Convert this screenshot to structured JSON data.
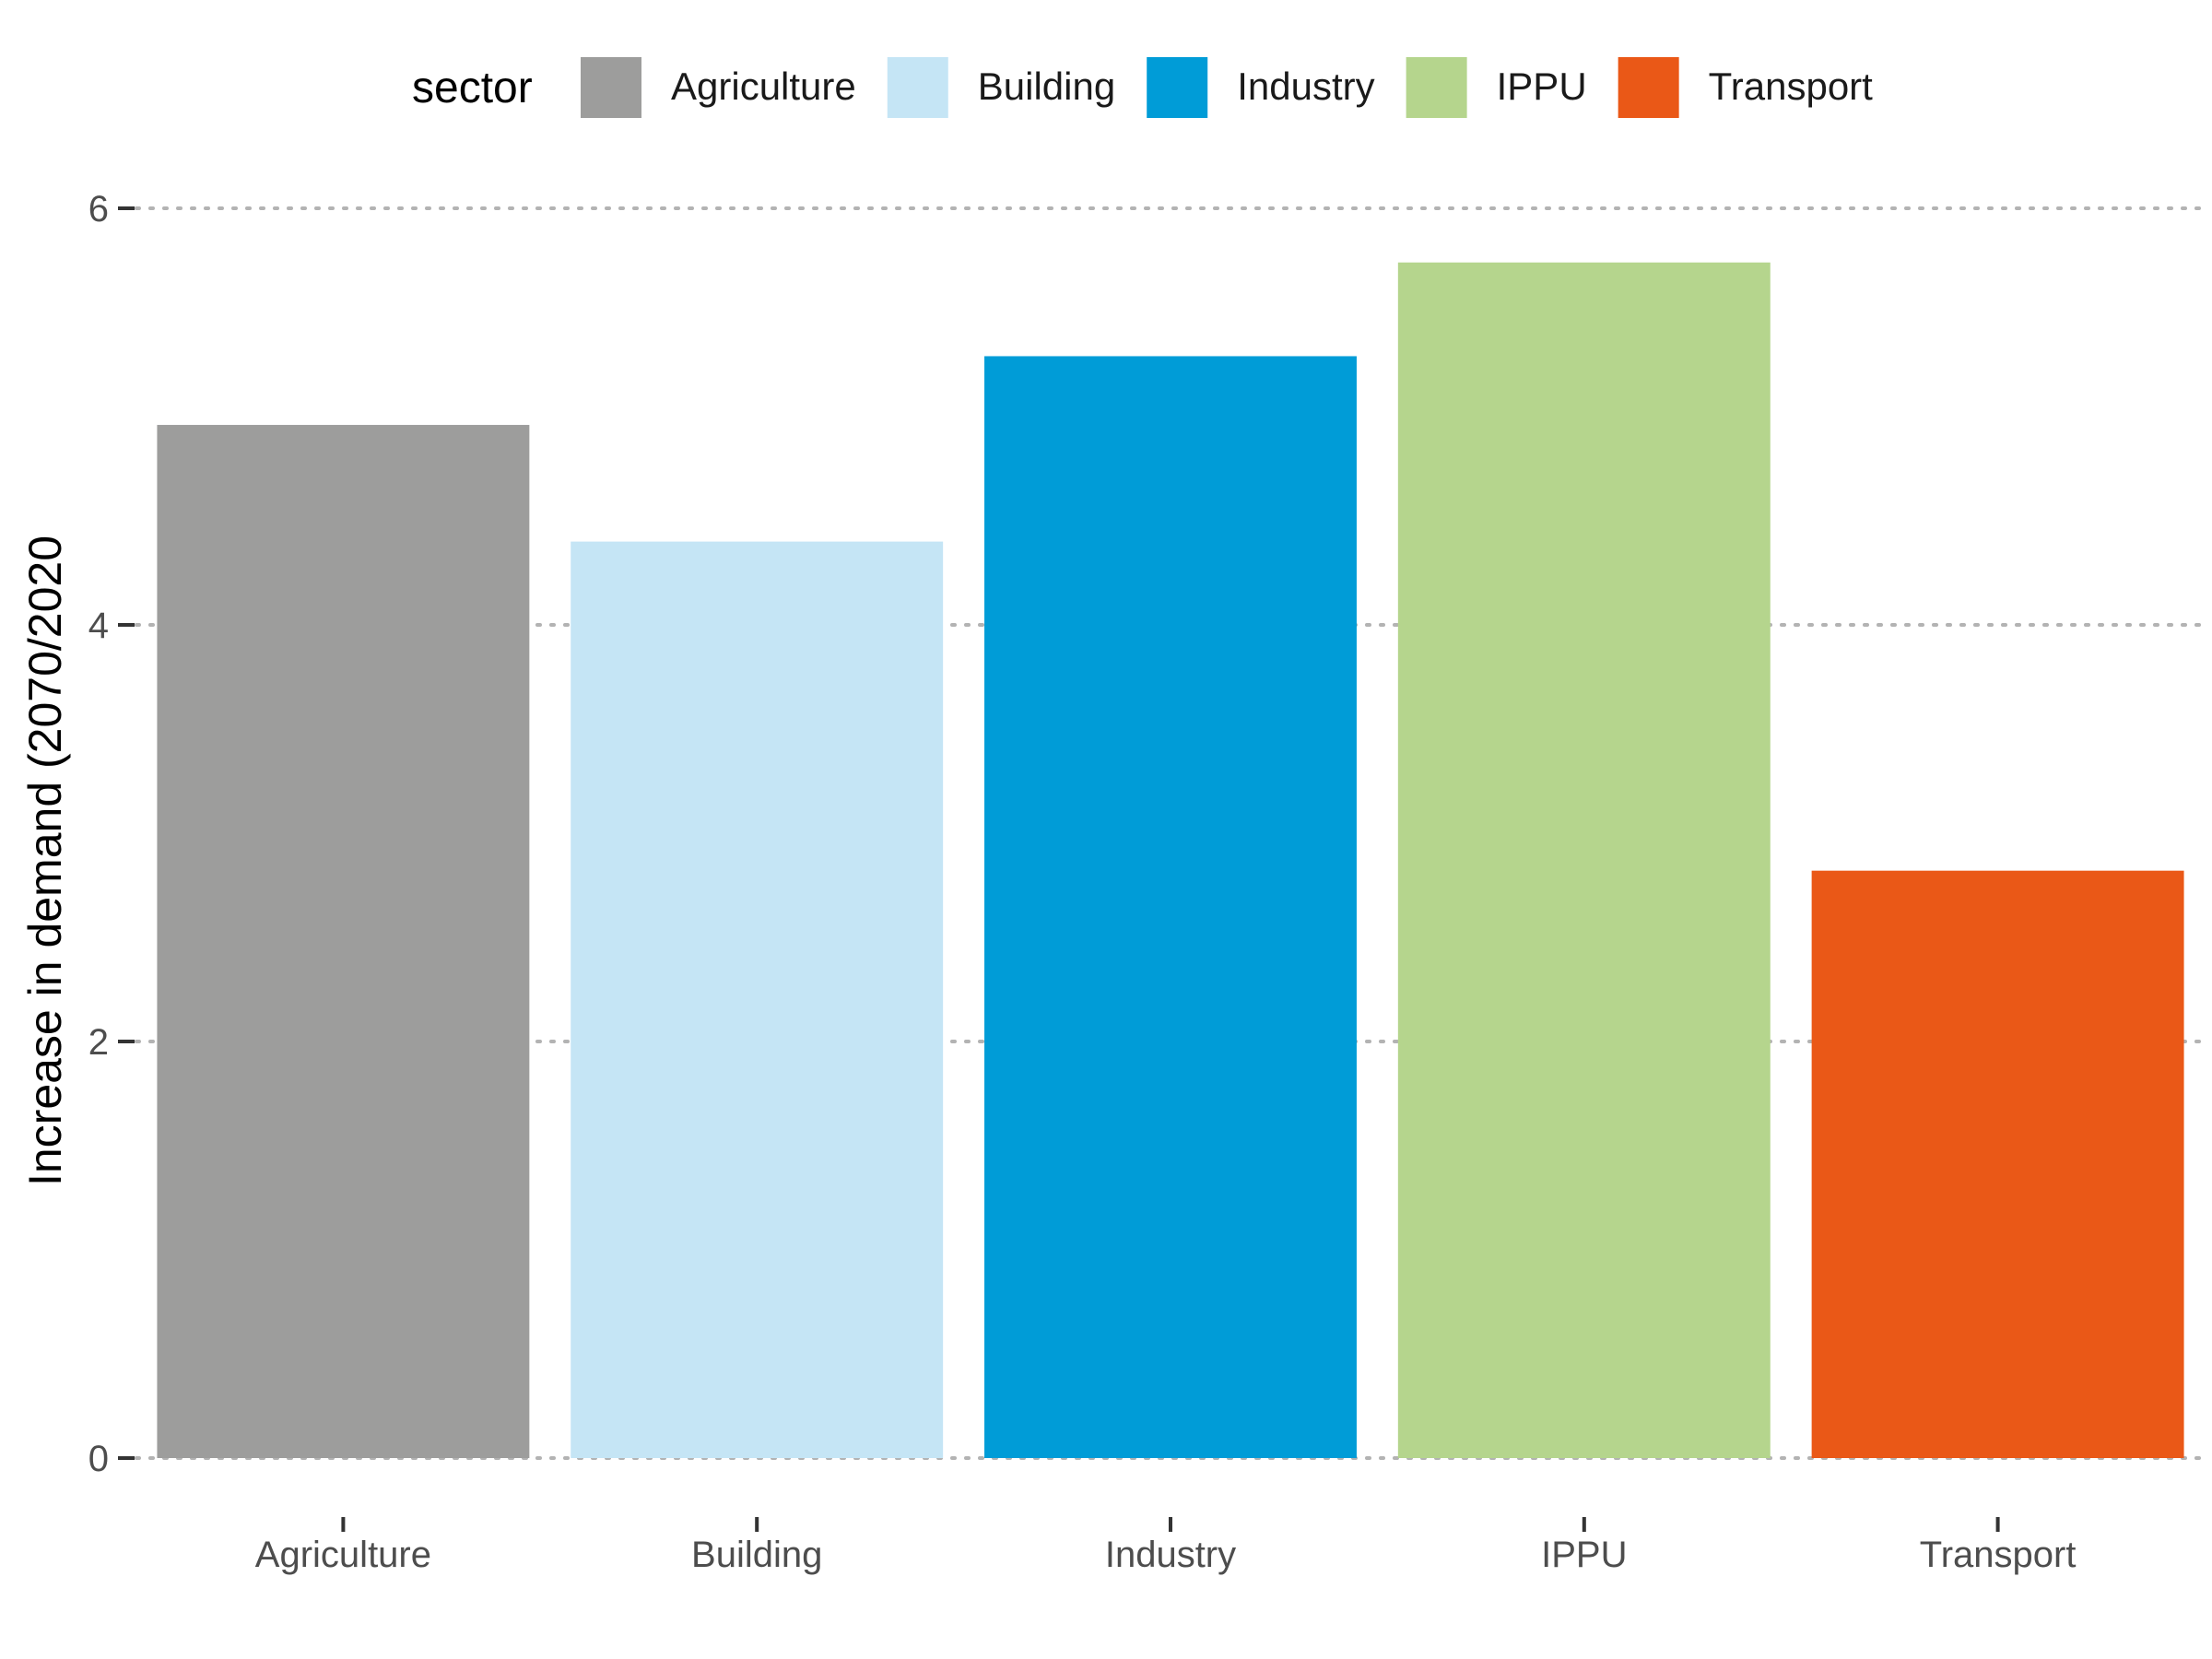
{
  "chart_data": {
    "type": "bar",
    "categories": [
      "Agriculture",
      "Building",
      "Industry",
      "IPPU",
      "Transport"
    ],
    "values": [
      4.96,
      4.4,
      5.29,
      5.74,
      2.82
    ],
    "colors": [
      "#9d9d9c",
      "#c5e5f5",
      "#009cd7",
      "#b5d58d",
      "#ea5817"
    ],
    "xlabel": "",
    "ylabel": "Increase in demand (2070/2020",
    "ylim": [
      0,
      6
    ],
    "yticks": [
      0,
      2,
      4,
      6
    ],
    "grid": "horizontal dotted",
    "legend": {
      "title": "sector",
      "position": "top",
      "entries": [
        "Agriculture",
        "Building",
        "Industry",
        "IPPU",
        "Transport"
      ]
    }
  }
}
